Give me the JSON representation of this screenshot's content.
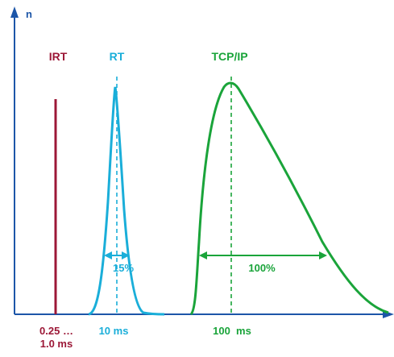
{
  "diagram": {
    "y_axis_label": "n",
    "colors": {
      "axis": "#1d56a8",
      "irt": "#9c1837",
      "rt": "#1aaed9",
      "tcp": "#1aa43a"
    },
    "curves": {
      "irt": {
        "label": "IRT",
        "x_label_line1": "0.25 …",
        "x_label_line2": "1.0 ms"
      },
      "rt": {
        "label": "RT",
        "x_label": "10 ms",
        "width_label": "15%"
      },
      "tcp": {
        "label": "TCP/IP",
        "x_label": "100  ms",
        "width_label": "100%"
      }
    }
  }
}
